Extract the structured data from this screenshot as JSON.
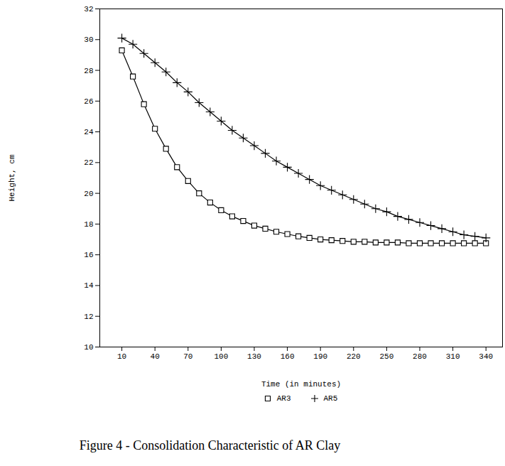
{
  "chart_data": {
    "type": "line",
    "title": "Figure 4 - Consolidation Characteristic of AR Clay",
    "x_label": "Time (in minutes)",
    "y_label": "Height, cm",
    "x": [
      10,
      20,
      30,
      40,
      50,
      60,
      70,
      80,
      90,
      100,
      110,
      120,
      130,
      140,
      150,
      160,
      170,
      180,
      190,
      200,
      210,
      220,
      230,
      240,
      250,
      260,
      270,
      280,
      290,
      300,
      310,
      320,
      330,
      340
    ],
    "series": [
      {
        "name": "AR3",
        "color": "#000000",
        "marker": "square",
        "values": [
          29.3,
          27.6,
          25.8,
          24.2,
          22.9,
          21.7,
          20.8,
          20.0,
          19.4,
          18.9,
          18.5,
          18.2,
          17.9,
          17.7,
          17.5,
          17.35,
          17.2,
          17.1,
          17.0,
          16.95,
          16.9,
          16.85,
          16.85,
          16.8,
          16.8,
          16.8,
          16.75,
          16.75,
          16.75,
          16.75,
          16.75,
          16.75,
          16.75,
          16.75
        ]
      },
      {
        "name": "AR5",
        "color": "#000000",
        "marker": "plus",
        "values": [
          30.1,
          29.7,
          29.1,
          28.5,
          27.9,
          27.2,
          26.6,
          25.9,
          25.3,
          24.7,
          24.1,
          23.6,
          23.1,
          22.6,
          22.1,
          21.7,
          21.3,
          20.9,
          20.5,
          20.2,
          19.9,
          19.6,
          19.3,
          19.0,
          18.8,
          18.5,
          18.3,
          18.1,
          17.9,
          17.7,
          17.5,
          17.3,
          17.2,
          17.1
        ]
      }
    ],
    "xlim": [
      -10,
      355
    ],
    "ylim": [
      10,
      32
    ],
    "xticks": [
      10,
      40,
      70,
      100,
      130,
      160,
      190,
      220,
      250,
      280,
      310,
      340
    ],
    "yticks": [
      10,
      12,
      14,
      16,
      18,
      20,
      22,
      24,
      26,
      28,
      30,
      32
    ],
    "grid": false,
    "legend": "bottom"
  }
}
